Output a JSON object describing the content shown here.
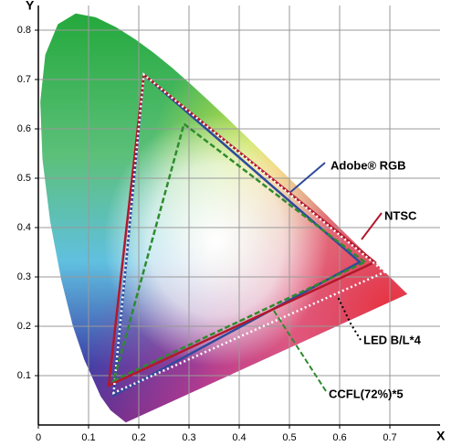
{
  "chart_data": {
    "type": "gamut",
    "xlabel": "X",
    "ylabel": "Y",
    "xlim": [
      0,
      0.8
    ],
    "ylim": [
      0,
      0.85
    ],
    "xticks": [
      0,
      0.1,
      0.2,
      0.3,
      0.4,
      0.5,
      0.6,
      0.7
    ],
    "yticks": [
      0.1,
      0.2,
      0.3,
      0.4,
      0.5,
      0.6,
      0.7,
      0.8
    ],
    "grid": true,
    "series": [
      {
        "name": "Adobe® RGB",
        "color": "#2f4a9c",
        "dash": "solid",
        "x": [
          0.64,
          0.21,
          0.15
        ],
        "y": [
          0.33,
          0.71,
          0.06
        ]
      },
      {
        "name": "NTSC",
        "color": "#b3182b",
        "dash": "solid",
        "x": [
          0.67,
          0.21,
          0.14
        ],
        "y": [
          0.33,
          0.71,
          0.08
        ]
      },
      {
        "name": "LED B/L*4",
        "color": "#ffffff",
        "dash": "dotted",
        "x": [
          0.69,
          0.21,
          0.15
        ],
        "y": [
          0.31,
          0.71,
          0.065
        ]
      },
      {
        "name": "CCFL(72%)*5",
        "color": "#2e8b2e",
        "dash": "dashed",
        "x": [
          0.65,
          0.29,
          0.15
        ],
        "y": [
          0.33,
          0.61,
          0.09
        ]
      }
    ]
  }
}
